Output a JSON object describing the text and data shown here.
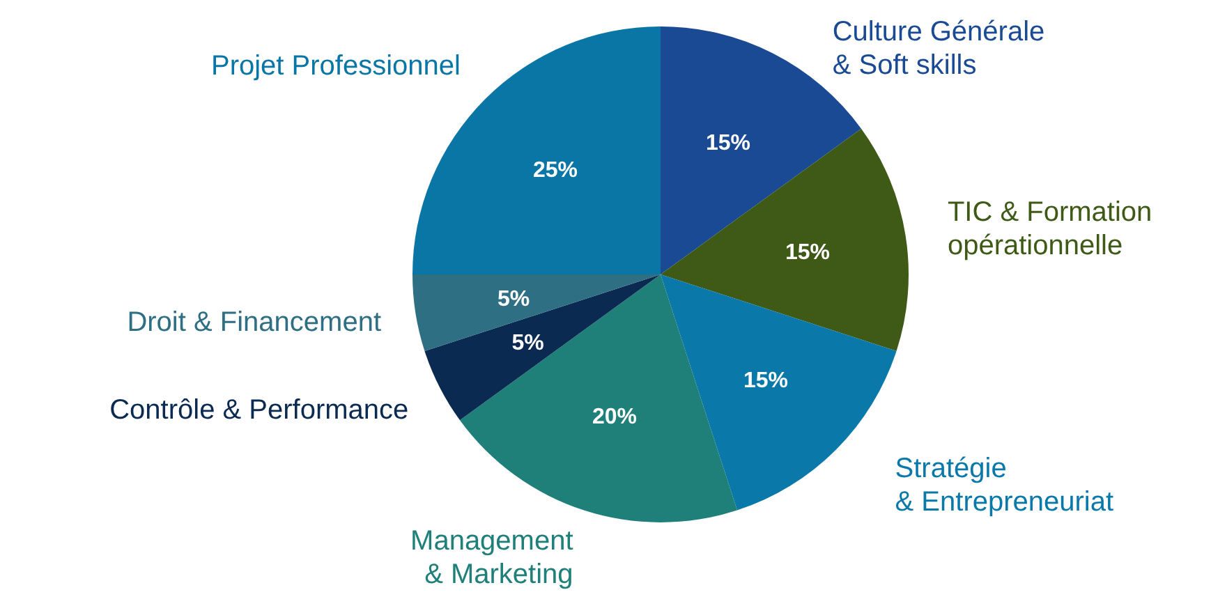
{
  "chart_data": {
    "type": "pie",
    "categories": [
      "Culture Générale\n& Soft skills",
      "TIC & Formation\nopérationnelle",
      "Stratégie\n& Entrepreneuriat",
      "Management\n& Marketing",
      "Contrôle & Performance",
      "Droit & Financement",
      "Projet Professionnel"
    ],
    "values": [
      15,
      15,
      15,
      20,
      5,
      5,
      25
    ],
    "colors": [
      "#1b4a94",
      "#3e5a16",
      "#0a79aa",
      "#1f8079",
      "#0b2a52",
      "#2e6f84",
      "#0a76a6"
    ],
    "value_labels": [
      "15%",
      "15%",
      "15%",
      "20%",
      "5%",
      "5%",
      "25%"
    ]
  }
}
